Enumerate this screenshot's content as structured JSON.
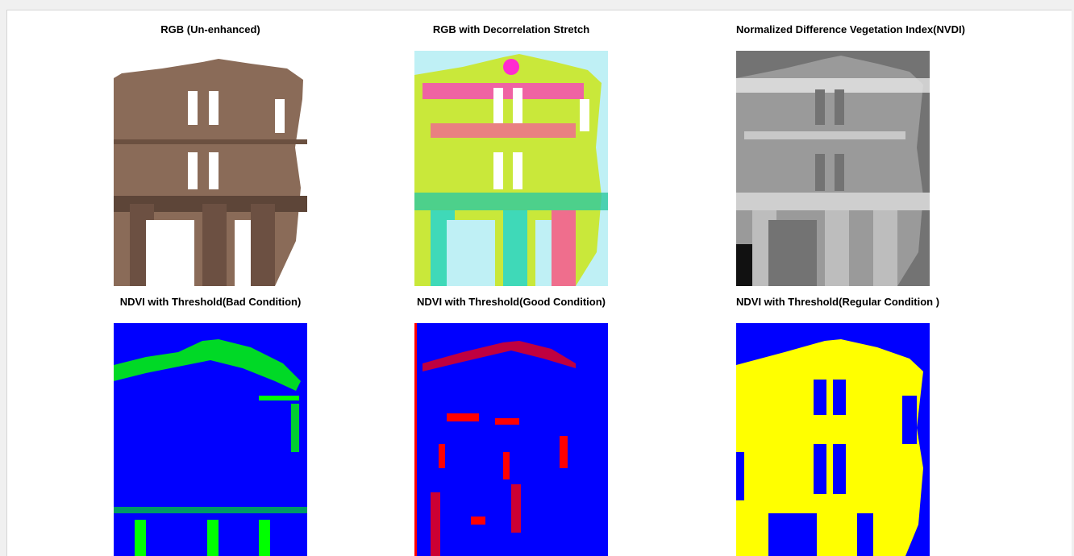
{
  "figure": {
    "panels": [
      {
        "id": "rgb",
        "title": "RGB (Un-enhanced)",
        "image": "building-facade-photo"
      },
      {
        "id": "decorr",
        "title": "RGB with Decorrelation Stretch",
        "image": "decorrelation-stretch-false-color"
      },
      {
        "id": "ndvi",
        "title": "Normalized Difference Vegetation Index(NVDI)",
        "image": "ndvi-grayscale"
      },
      {
        "id": "bad",
        "title": "NDVI with Threshold(Bad Condition)",
        "image": "threshold-mask-green-on-blue"
      },
      {
        "id": "good",
        "title": "NDVI with Threshold(Good Condition)",
        "image": "threshold-mask-red-on-blue"
      },
      {
        "id": "regular",
        "title": "NDVI with Threshold(Regular Condition )",
        "image": "threshold-mask-yellow-on-blue"
      }
    ]
  },
  "colors": {
    "mask_background": "#0000ff",
    "bad_condition": "#00ff00",
    "good_condition": "#ff0000",
    "regular_condition": "#ffff00",
    "decorr_background": "#bff0f5",
    "ndvi_background": "#737373"
  }
}
